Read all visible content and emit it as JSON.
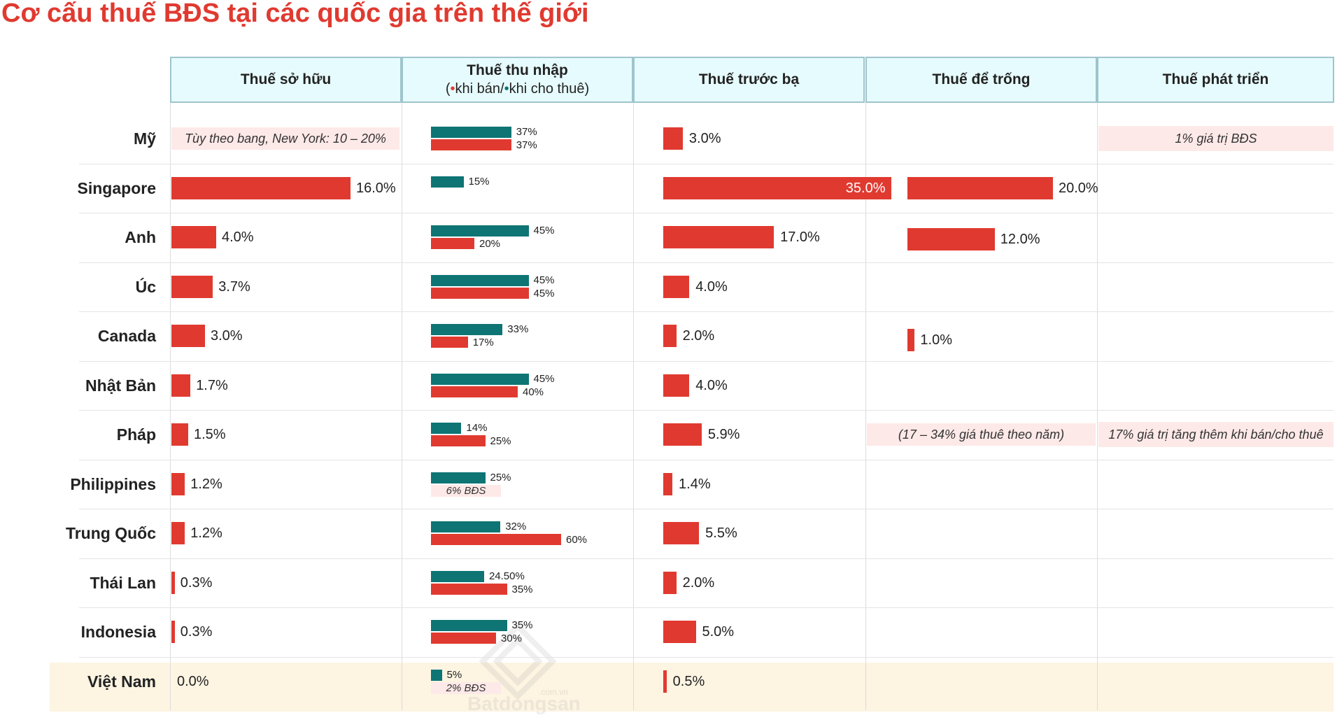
{
  "chart_data": {
    "type": "table",
    "title": "Cơ cấu thuế BĐS tại các quốc gia trên thế giới",
    "columns": [
      {
        "key": "ownership",
        "label": "Thuế sở hữu"
      },
      {
        "key": "income",
        "label": "Thuế thu nhập",
        "sub_open": "(",
        "sub_sale": "khi bán/",
        "sub_rent": "khi cho thuê)",
        "dot": "•"
      },
      {
        "key": "registration",
        "label": "Thuế trước bạ"
      },
      {
        "key": "vacancy",
        "label": "Thuế để trống"
      },
      {
        "key": "development",
        "label": "Thuế phát triển"
      }
    ],
    "series_colors": {
      "sale": "#e03a30",
      "rent": "#0e7474"
    },
    "rows": [
      {
        "country": "Mỹ",
        "ownership": null,
        "ownership_label": "",
        "ownership_note": "Tùy theo bang, New York: 10 – 20%",
        "rent": 37,
        "rent_label": "37%",
        "sale": 37,
        "sale_label": "37%",
        "sale_note": null,
        "registration": 3.0,
        "registration_label": "3.0%",
        "vacancy": null,
        "vacancy_label": "",
        "vacancy_note": null,
        "development_note": "1% giá trị BĐS"
      },
      {
        "country": "Singapore",
        "ownership": 16.0,
        "ownership_label": "16.0%",
        "ownership_note": null,
        "rent": 15,
        "rent_label": "15%",
        "sale": null,
        "sale_label": "",
        "sale_note": null,
        "registration": 35.0,
        "registration_label": "35.0%",
        "vacancy": 20.0,
        "vacancy_label": "20.0%",
        "vacancy_note": null,
        "development_note": null
      },
      {
        "country": "Anh",
        "ownership": 4.0,
        "ownership_label": "4.0%",
        "ownership_note": null,
        "rent": 45,
        "rent_label": "45%",
        "sale": 20,
        "sale_label": "20%",
        "sale_note": null,
        "registration": 17.0,
        "registration_label": "17.0%",
        "vacancy": 12.0,
        "vacancy_label": "12.0%",
        "vacancy_note": null,
        "development_note": null
      },
      {
        "country": "Úc",
        "ownership": 3.7,
        "ownership_label": "3.7%",
        "ownership_note": null,
        "rent": 45,
        "rent_label": "45%",
        "sale": 45,
        "sale_label": "45%",
        "sale_note": null,
        "registration": 4.0,
        "registration_label": "4.0%",
        "vacancy": null,
        "vacancy_label": "",
        "vacancy_note": null,
        "development_note": null
      },
      {
        "country": "Canada",
        "ownership": 3.0,
        "ownership_label": "3.0%",
        "ownership_note": null,
        "rent": 33,
        "rent_label": "33%",
        "sale": 17,
        "sale_label": "17%",
        "sale_note": null,
        "registration": 2.0,
        "registration_label": "2.0%",
        "vacancy": 1.0,
        "vacancy_label": "1.0%",
        "vacancy_note": null,
        "development_note": null
      },
      {
        "country": "Nhật Bản",
        "ownership": 1.7,
        "ownership_label": "1.7%",
        "ownership_note": null,
        "rent": 45,
        "rent_label": "45%",
        "sale": 40,
        "sale_label": "40%",
        "sale_note": null,
        "registration": 4.0,
        "registration_label": "4.0%",
        "vacancy": null,
        "vacancy_label": "",
        "vacancy_note": null,
        "development_note": null
      },
      {
        "country": "Pháp",
        "ownership": 1.5,
        "ownership_label": "1.5%",
        "ownership_note": null,
        "rent": 14,
        "rent_label": "14%",
        "sale": 25,
        "sale_label": "25%",
        "sale_note": null,
        "registration": 5.9,
        "registration_label": "5.9%",
        "vacancy": null,
        "vacancy_label": "",
        "vacancy_note": "(17 – 34% giá thuê theo năm)",
        "development_note": "17% giá trị tăng thêm khi bán/cho thuê"
      },
      {
        "country": "Philippines",
        "ownership": 1.2,
        "ownership_label": "1.2%",
        "ownership_note": null,
        "rent": 25,
        "rent_label": "25%",
        "sale": null,
        "sale_label": "",
        "sale_note": "6% BĐS",
        "registration": 1.4,
        "registration_label": "1.4%",
        "vacancy": null,
        "vacancy_label": "",
        "vacancy_note": null,
        "development_note": null
      },
      {
        "country": "Trung Quốc",
        "ownership": 1.2,
        "ownership_label": "1.2%",
        "ownership_note": null,
        "rent": 32,
        "rent_label": "32%",
        "sale": 60,
        "sale_label": "60%",
        "sale_note": null,
        "registration": 5.5,
        "registration_label": "5.5%",
        "vacancy": null,
        "vacancy_label": "",
        "vacancy_note": null,
        "development_note": null
      },
      {
        "country": "Thái Lan",
        "ownership": 0.3,
        "ownership_label": "0.3%",
        "ownership_note": null,
        "rent": 24.5,
        "rent_label": "24.50%",
        "sale": 35,
        "sale_label": "35%",
        "sale_note": null,
        "registration": 2.0,
        "registration_label": "2.0%",
        "vacancy": null,
        "vacancy_label": "",
        "vacancy_note": null,
        "development_note": null
      },
      {
        "country": "Indonesia",
        "ownership": 0.3,
        "ownership_label": "0.3%",
        "ownership_note": null,
        "rent": 35,
        "rent_label": "35%",
        "sale": 30,
        "sale_label": "30%",
        "sale_note": null,
        "registration": 5.0,
        "registration_label": "5.0%",
        "vacancy": null,
        "vacancy_label": "",
        "vacancy_note": null,
        "development_note": null
      },
      {
        "country": "Việt Nam",
        "ownership": 0.0,
        "ownership_label": "0.0%",
        "ownership_note": null,
        "rent": 5,
        "rent_label": "5%",
        "sale": null,
        "sale_label": "",
        "sale_note": "2% BĐS",
        "registration": 0.5,
        "registration_label": "0.5%",
        "vacancy": null,
        "vacancy_label": "",
        "vacancy_note": null,
        "development_note": null
      }
    ]
  },
  "watermark": {
    "brand": "Batdongsan",
    "suffix": ".com.vn"
  }
}
